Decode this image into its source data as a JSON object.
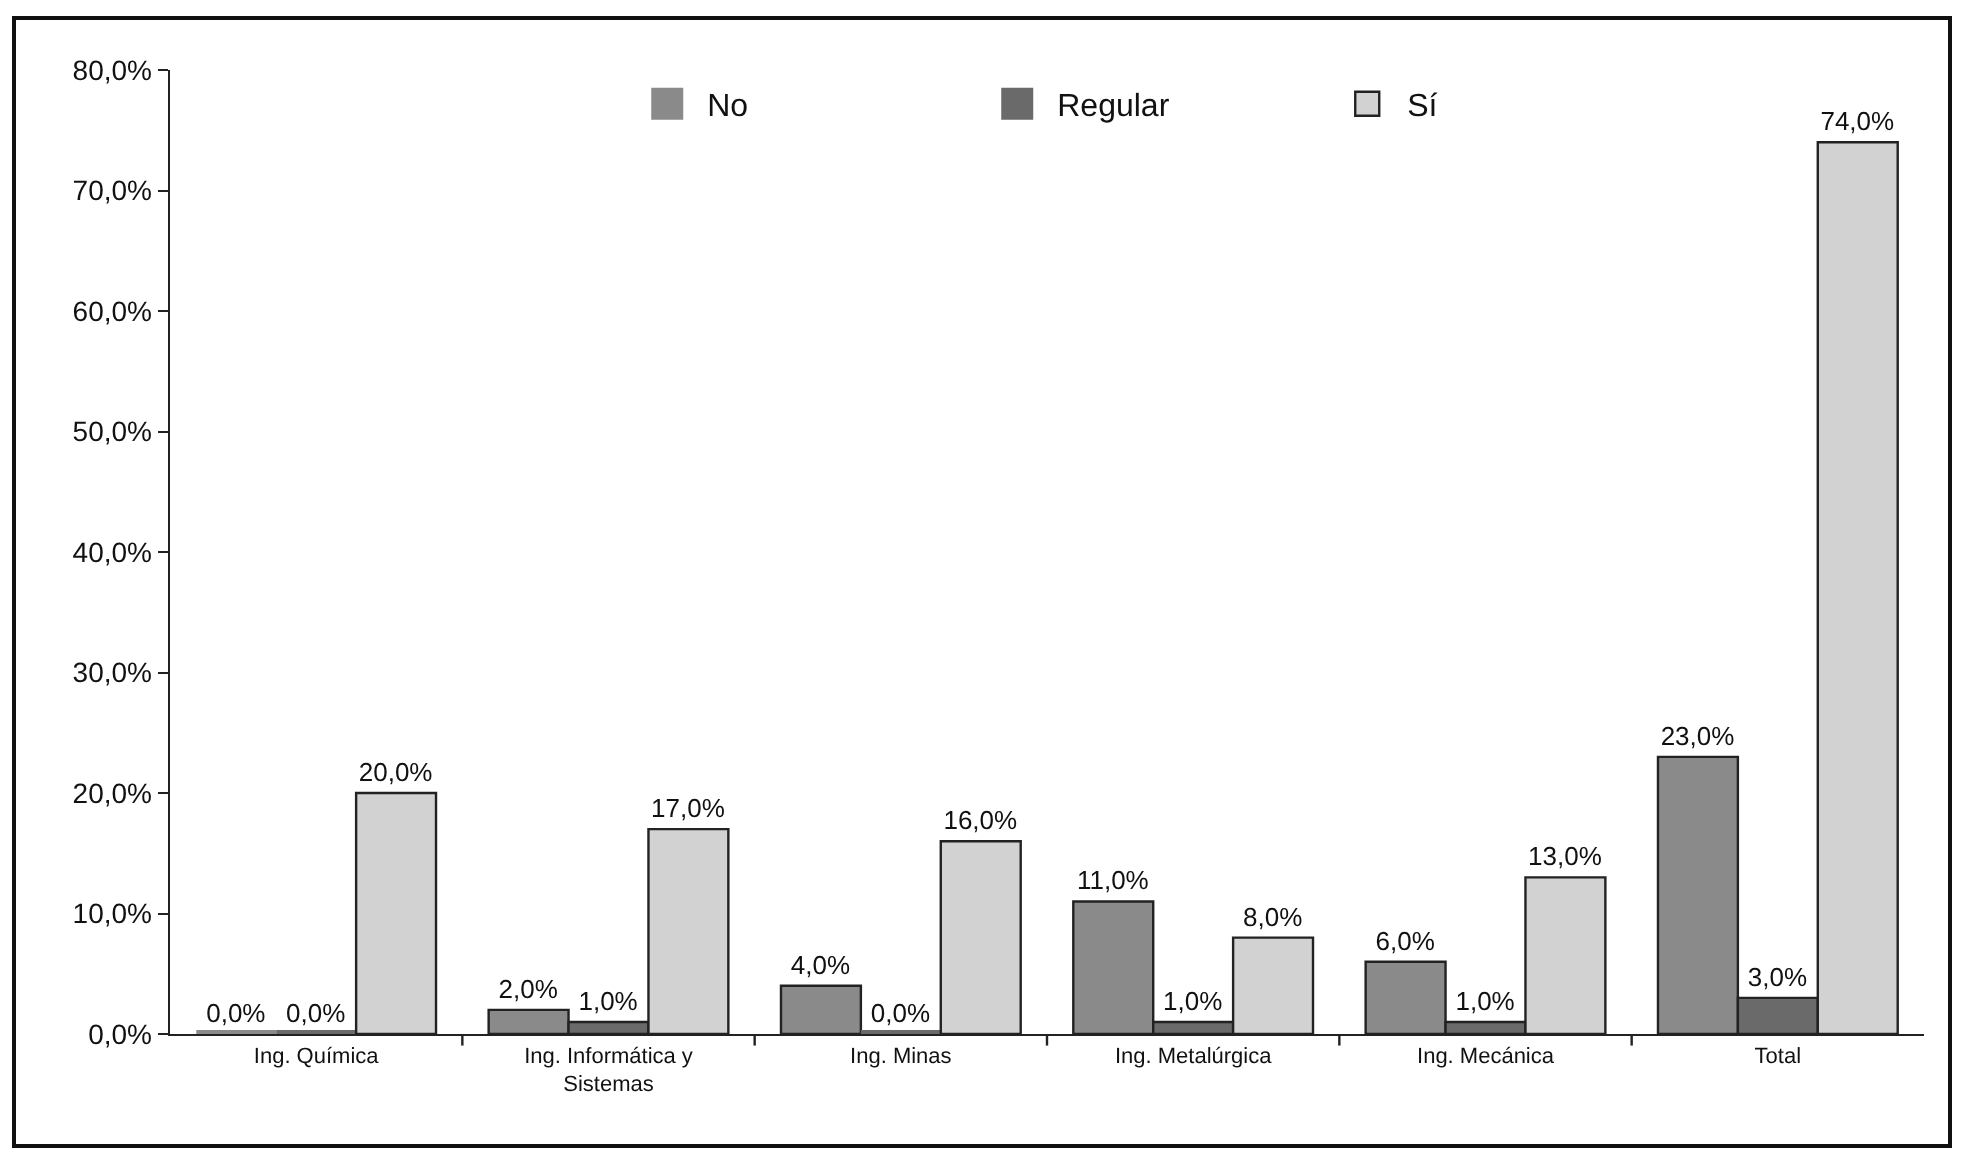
{
  "chart_data": {
    "type": "bar",
    "categories": [
      "Ing. Química",
      "Ing. Informática y Sistemas",
      "Ing. Minas",
      "Ing. Metalúrgica",
      "Ing. Mecánica",
      "Total"
    ],
    "series": [
      {
        "name": "No",
        "color": "#8a8a8a",
        "values": [
          0,
          2,
          4,
          11,
          6,
          23
        ],
        "value_labels": [
          "0,0%",
          "2,0%",
          "4,0%",
          "11,0%",
          "6,0%",
          "23,0%"
        ]
      },
      {
        "name": "Regular",
        "color": "#6a6a6a",
        "values": [
          0,
          1,
          0,
          1,
          1,
          3
        ],
        "value_labels": [
          "0,0%",
          "1,0%",
          "0,0%",
          "1,0%",
          "1,0%",
          "3,0%"
        ]
      },
      {
        "name": "Sí",
        "color": "#d2d2d2",
        "values": [
          20,
          17,
          16,
          8,
          13,
          74
        ],
        "value_labels": [
          "20,0%",
          "17,0%",
          "16,0%",
          "8,0%",
          "13,0%",
          "74,0%"
        ]
      }
    ],
    "ylim": [
      0,
      80
    ],
    "yticks": [
      {
        "value": 0,
        "label": "0,0%"
      },
      {
        "value": 10,
        "label": "10,0%"
      },
      {
        "value": 20,
        "label": "20,0%"
      },
      {
        "value": 30,
        "label": "30,0%"
      },
      {
        "value": 40,
        "label": "40,0%"
      },
      {
        "value": 50,
        "label": "50,0%"
      },
      {
        "value": 60,
        "label": "60,0%"
      },
      {
        "value": 70,
        "label": "70,0%"
      },
      {
        "value": 80,
        "label": "80,0%"
      }
    ],
    "grid": false,
    "legend": "top"
  }
}
